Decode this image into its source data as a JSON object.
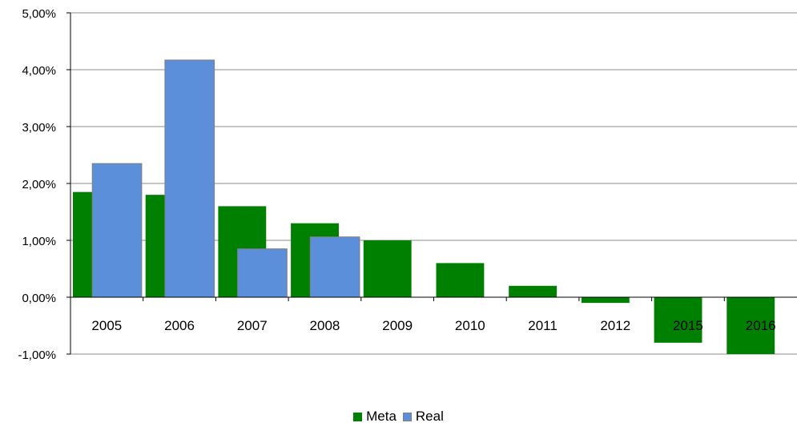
{
  "chart_data": {
    "type": "bar",
    "categories": [
      "2005",
      "2006",
      "2007",
      "2008",
      "2009",
      "2010",
      "2011",
      "2012",
      "2015",
      "2016"
    ],
    "series": [
      {
        "name": "Meta",
        "color": "#008000",
        "values": [
          1.85,
          1.8,
          1.6,
          1.3,
          1.0,
          0.6,
          0.2,
          -0.1,
          -0.8,
          -1.0
        ]
      },
      {
        "name": "Real",
        "color": "#5B8FD9",
        "values": [
          2.35,
          4.17,
          0.85,
          1.06,
          null,
          null,
          null,
          null,
          null,
          null
        ]
      }
    ],
    "ylim": [
      -1,
      5
    ],
    "yticks": [
      5,
      4,
      3,
      2,
      1,
      0,
      -1
    ],
    "ytick_labels": [
      "5,00%",
      "4,00%",
      "3,00%",
      "2,00%",
      "1,00%",
      "0,00%",
      "-1,00%"
    ],
    "grid": true,
    "legend_position": "bottom",
    "title": "",
    "xlabel": "",
    "ylabel": ""
  }
}
